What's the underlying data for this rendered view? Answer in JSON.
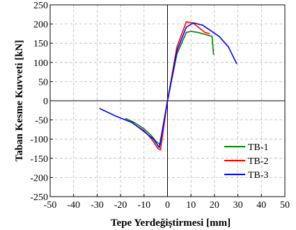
{
  "chart_data": {
    "type": "line",
    "title": "",
    "xlabel": "Tepe Yerdeğiştirmesi [mm]",
    "ylabel": "Taban Kesme Kuvveti [kN]",
    "xlim": [
      -50,
      50
    ],
    "ylim": [
      -250,
      250
    ],
    "xticks": [
      -50,
      -40,
      -30,
      -20,
      -10,
      0,
      10,
      20,
      30,
      40,
      50
    ],
    "yticks": [
      -250,
      -200,
      -150,
      -100,
      -50,
      0,
      50,
      100,
      150,
      200,
      250
    ],
    "grid": true,
    "legend_position": "lower-right",
    "series": [
      {
        "name": "TB-1",
        "color": "#008000",
        "x": [
          -18,
          -14,
          -10,
          -7,
          -5,
          -3,
          0,
          4,
          8,
          10,
          13,
          19,
          19.6
        ],
        "y": [
          -46,
          -57,
          -73,
          -90,
          -105,
          -115,
          0,
          122,
          178,
          181,
          178,
          168,
          120
        ]
      },
      {
        "name": "TB-2",
        "color": "#ff0000",
        "x": [
          -15,
          -10,
          -7,
          -4,
          -3,
          0,
          4,
          8,
          11,
          16,
          18
        ],
        "y": [
          -58,
          -78,
          -98,
          -125,
          -128,
          0,
          140,
          206,
          202,
          178,
          175
        ]
      },
      {
        "name": "TB-3",
        "color": "#0000ff",
        "x": [
          -29,
          -22,
          -15,
          -10,
          -6,
          -3.5,
          0,
          4,
          8,
          11,
          15,
          22,
          26,
          29.5
        ],
        "y": [
          -20,
          -40,
          -57,
          -80,
          -100,
          -122,
          0,
          130,
          192,
          203,
          197,
          168,
          140,
          96
        ]
      }
    ]
  }
}
